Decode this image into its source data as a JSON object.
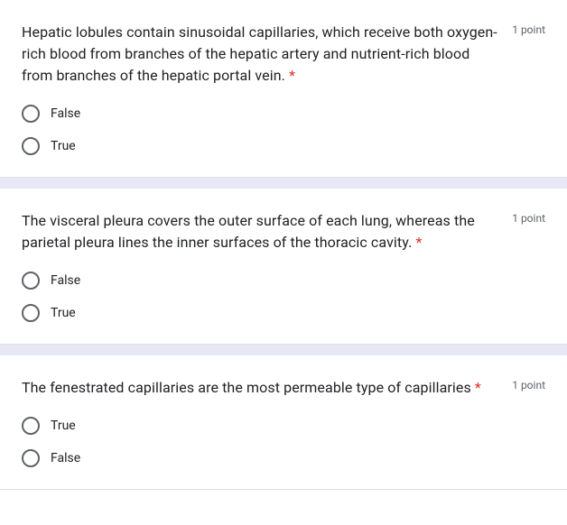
{
  "required_marker": "*",
  "points_label": "1 point",
  "questions": [
    {
      "text": "Hepatic lobules contain sinusoidal capillaries, which receive both oxygen-rich blood from branches of the hepatic artery and nutrient-rich blood from branches of the hepatic portal vein. ",
      "options": [
        "False",
        "True"
      ]
    },
    {
      "text": "The visceral pleura covers the outer surface of each lung, whereas the parietal pleura lines the inner surfaces of the thoracic cavity. ",
      "options": [
        "False",
        "True"
      ]
    },
    {
      "text": "The fenestrated capillaries are the most permeable type of capillaries ",
      "options": [
        "True",
        "False"
      ]
    }
  ],
  "colors": {
    "text_primary": "#202124",
    "text_secondary": "#5f6368",
    "required": "#d93025",
    "separator": "#e8e7f7",
    "background": "#ffffff",
    "radio_border": "#5f6368"
  }
}
